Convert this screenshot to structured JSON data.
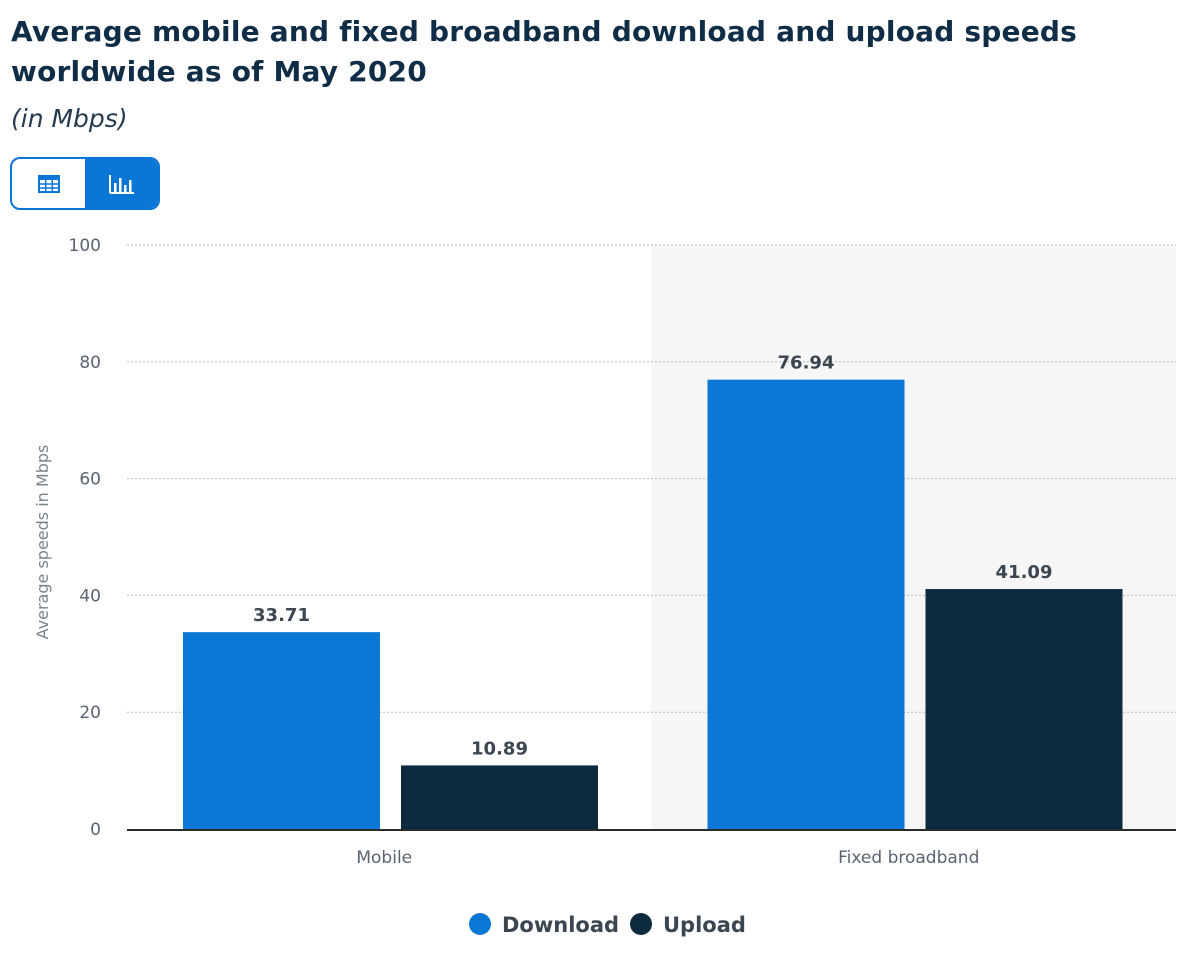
{
  "header": {
    "title": "Average mobile and fixed broadband download and upload speeds worldwide as of May 2020",
    "subtitle": "(in Mbps)"
  },
  "view_toggle": {
    "table_icon": "table-icon",
    "chart_icon": "bar-chart-icon",
    "active": "chart"
  },
  "colors": {
    "download": "#0b78d7",
    "upload": "#0d2a3f",
    "accent": "#0a76d6"
  },
  "chart_data": {
    "type": "bar",
    "title": "Average mobile and fixed broadband download and upload speeds worldwide as of May 2020",
    "subtitle": "(in Mbps)",
    "categories": [
      "Mobile",
      "Fixed broadband"
    ],
    "series": [
      {
        "name": "Download",
        "values": [
          33.71,
          76.94
        ],
        "labels": [
          "33.71",
          "76.94"
        ]
      },
      {
        "name": "Upload",
        "values": [
          10.89,
          41.09
        ],
        "labels": [
          "10.89",
          "41.09"
        ]
      }
    ],
    "xlabel": "",
    "ylabel": "Average speeds in Mbps",
    "ylim": [
      0,
      100
    ],
    "yticks": [
      0,
      20,
      40,
      60,
      80,
      100
    ],
    "grid": true,
    "legend_position": "bottom-center",
    "highlighted_category": "Fixed broadband"
  }
}
